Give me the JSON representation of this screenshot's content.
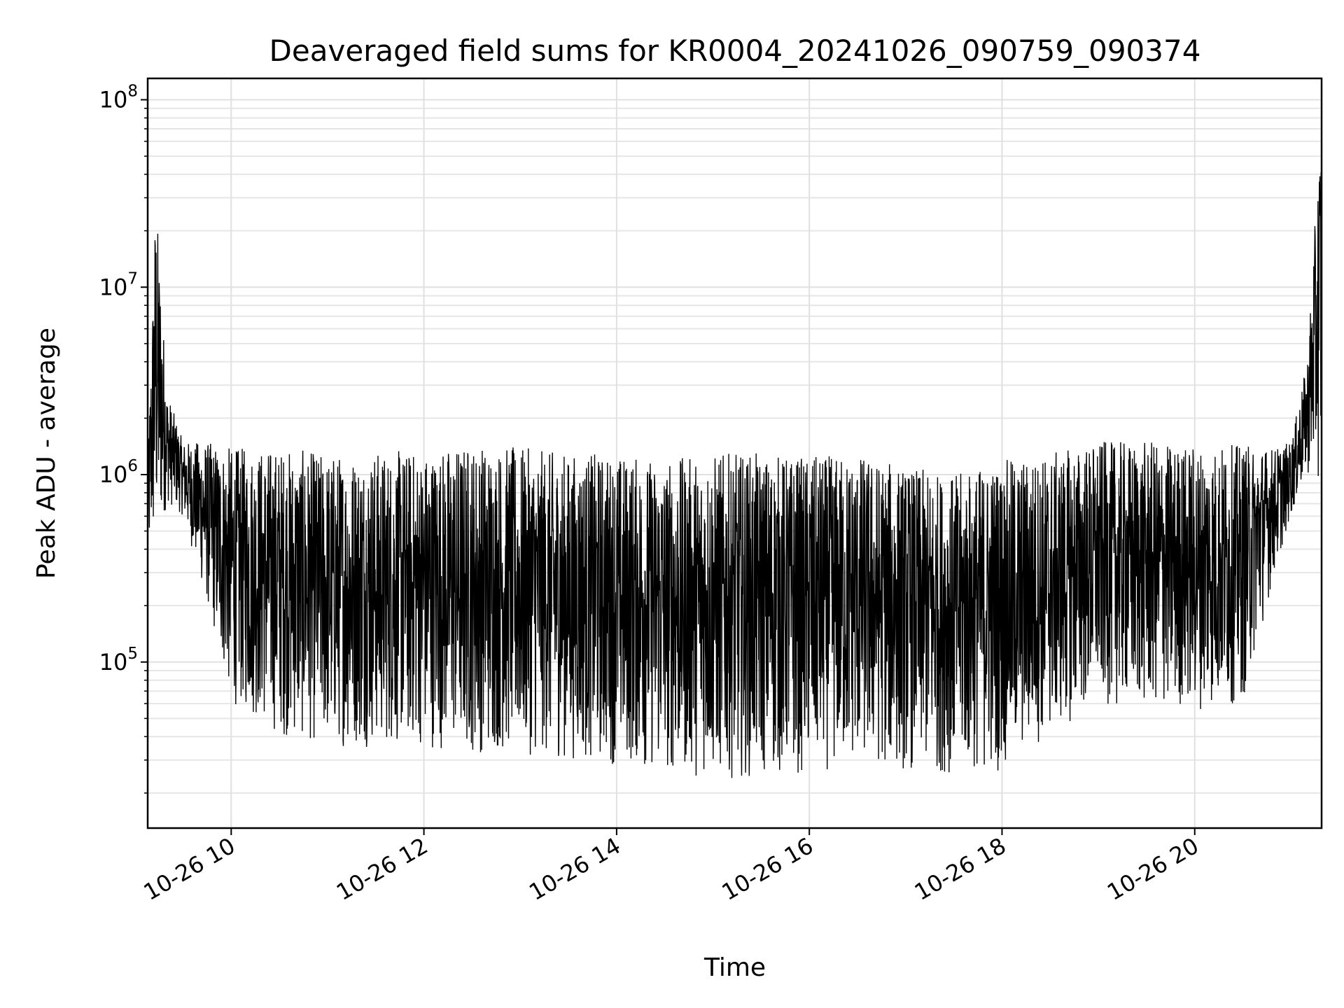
{
  "chart_data": {
    "type": "line",
    "title": "Deaveraged field sums for KR0004_20241026_090759_090374",
    "xlabel": "Time",
    "ylabel": "Peak ADU - average",
    "yscale": "log",
    "grid": true,
    "ylim": [
      13000,
      130000000
    ],
    "xlim": [
      "2024-10-26 09:08",
      "2024-10-26 21:19"
    ],
    "x_ticks": [
      {
        "value": "2024-10-26 10:00",
        "label": "10-26 10"
      },
      {
        "value": "2024-10-26 12:00",
        "label": "10-26 12"
      },
      {
        "value": "2024-10-26 14:00",
        "label": "10-26 14"
      },
      {
        "value": "2024-10-26 16:00",
        "label": "10-26 16"
      },
      {
        "value": "2024-10-26 18:00",
        "label": "10-26 18"
      },
      {
        "value": "2024-10-26 20:00",
        "label": "10-26 20"
      }
    ],
    "y_ticks": [
      {
        "value": 100000,
        "base": "10",
        "exp": "5"
      },
      {
        "value": 1000000,
        "base": "10",
        "exp": "6"
      },
      {
        "value": 10000000,
        "base": "10",
        "exp": "7"
      },
      {
        "value": 100000000,
        "base": "10",
        "exp": "8"
      }
    ],
    "series": [
      {
        "color": "#000000",
        "envelope": [
          {
            "x": "2024-10-26 09:08",
            "low": 340000,
            "high": 1100000
          },
          {
            "x": "2024-10-26 09:13",
            "low": 350000,
            "high": 33000000
          },
          {
            "x": "2024-10-26 09:20",
            "low": 700000,
            "high": 2800000
          },
          {
            "x": "2024-10-26 09:30",
            "low": 600000,
            "high": 1500000
          },
          {
            "x": "2024-10-26 09:45",
            "low": 200000,
            "high": 1500000
          },
          {
            "x": "2024-10-26 10:00",
            "low": 60000,
            "high": 1400000
          },
          {
            "x": "2024-10-26 10:30",
            "low": 40000,
            "high": 1400000
          },
          {
            "x": "2024-10-26 11:00",
            "low": 35000,
            "high": 1300000
          },
          {
            "x": "2024-10-26 11:30",
            "low": 35000,
            "high": 1350000
          },
          {
            "x": "2024-10-26 12:00",
            "low": 35000,
            "high": 1350000
          },
          {
            "x": "2024-10-26 12:30",
            "low": 32000,
            "high": 1500000
          },
          {
            "x": "2024-10-26 13:00",
            "low": 32000,
            "high": 1400000
          },
          {
            "x": "2024-10-26 13:30",
            "low": 30000,
            "high": 1300000
          },
          {
            "x": "2024-10-26 14:00",
            "low": 28000,
            "high": 1300000
          },
          {
            "x": "2024-10-26 14:30",
            "low": 25000,
            "high": 1200000
          },
          {
            "x": "2024-10-26 15:00",
            "low": 24000,
            "high": 1300000
          },
          {
            "x": "2024-10-26 15:30",
            "low": 24000,
            "high": 1300000
          },
          {
            "x": "2024-10-26 16:00",
            "low": 25000,
            "high": 1250000
          },
          {
            "x": "2024-10-26 16:30",
            "low": 28000,
            "high": 1300000
          },
          {
            "x": "2024-10-26 17:00",
            "low": 26000,
            "high": 1100000
          },
          {
            "x": "2024-10-26 17:30",
            "low": 25000,
            "high": 1000000
          },
          {
            "x": "2024-10-26 18:00",
            "low": 26000,
            "high": 1200000
          },
          {
            "x": "2024-10-26 18:30",
            "low": 40000,
            "high": 1300000
          },
          {
            "x": "2024-10-26 19:00",
            "low": 60000,
            "high": 1500000
          },
          {
            "x": "2024-10-26 19:30",
            "low": 55000,
            "high": 1500000
          },
          {
            "x": "2024-10-26 20:00",
            "low": 55000,
            "high": 1450000
          },
          {
            "x": "2024-10-26 20:30",
            "low": 60000,
            "high": 1450000
          },
          {
            "x": "2024-10-26 20:50",
            "low": 300000,
            "high": 1400000
          },
          {
            "x": "2024-10-26 21:00",
            "low": 600000,
            "high": 1500000
          },
          {
            "x": "2024-10-26 21:10",
            "low": 1000000,
            "high": 4000000
          },
          {
            "x": "2024-10-26 21:19",
            "low": 900000,
            "high": 90000000
          }
        ]
      }
    ]
  }
}
